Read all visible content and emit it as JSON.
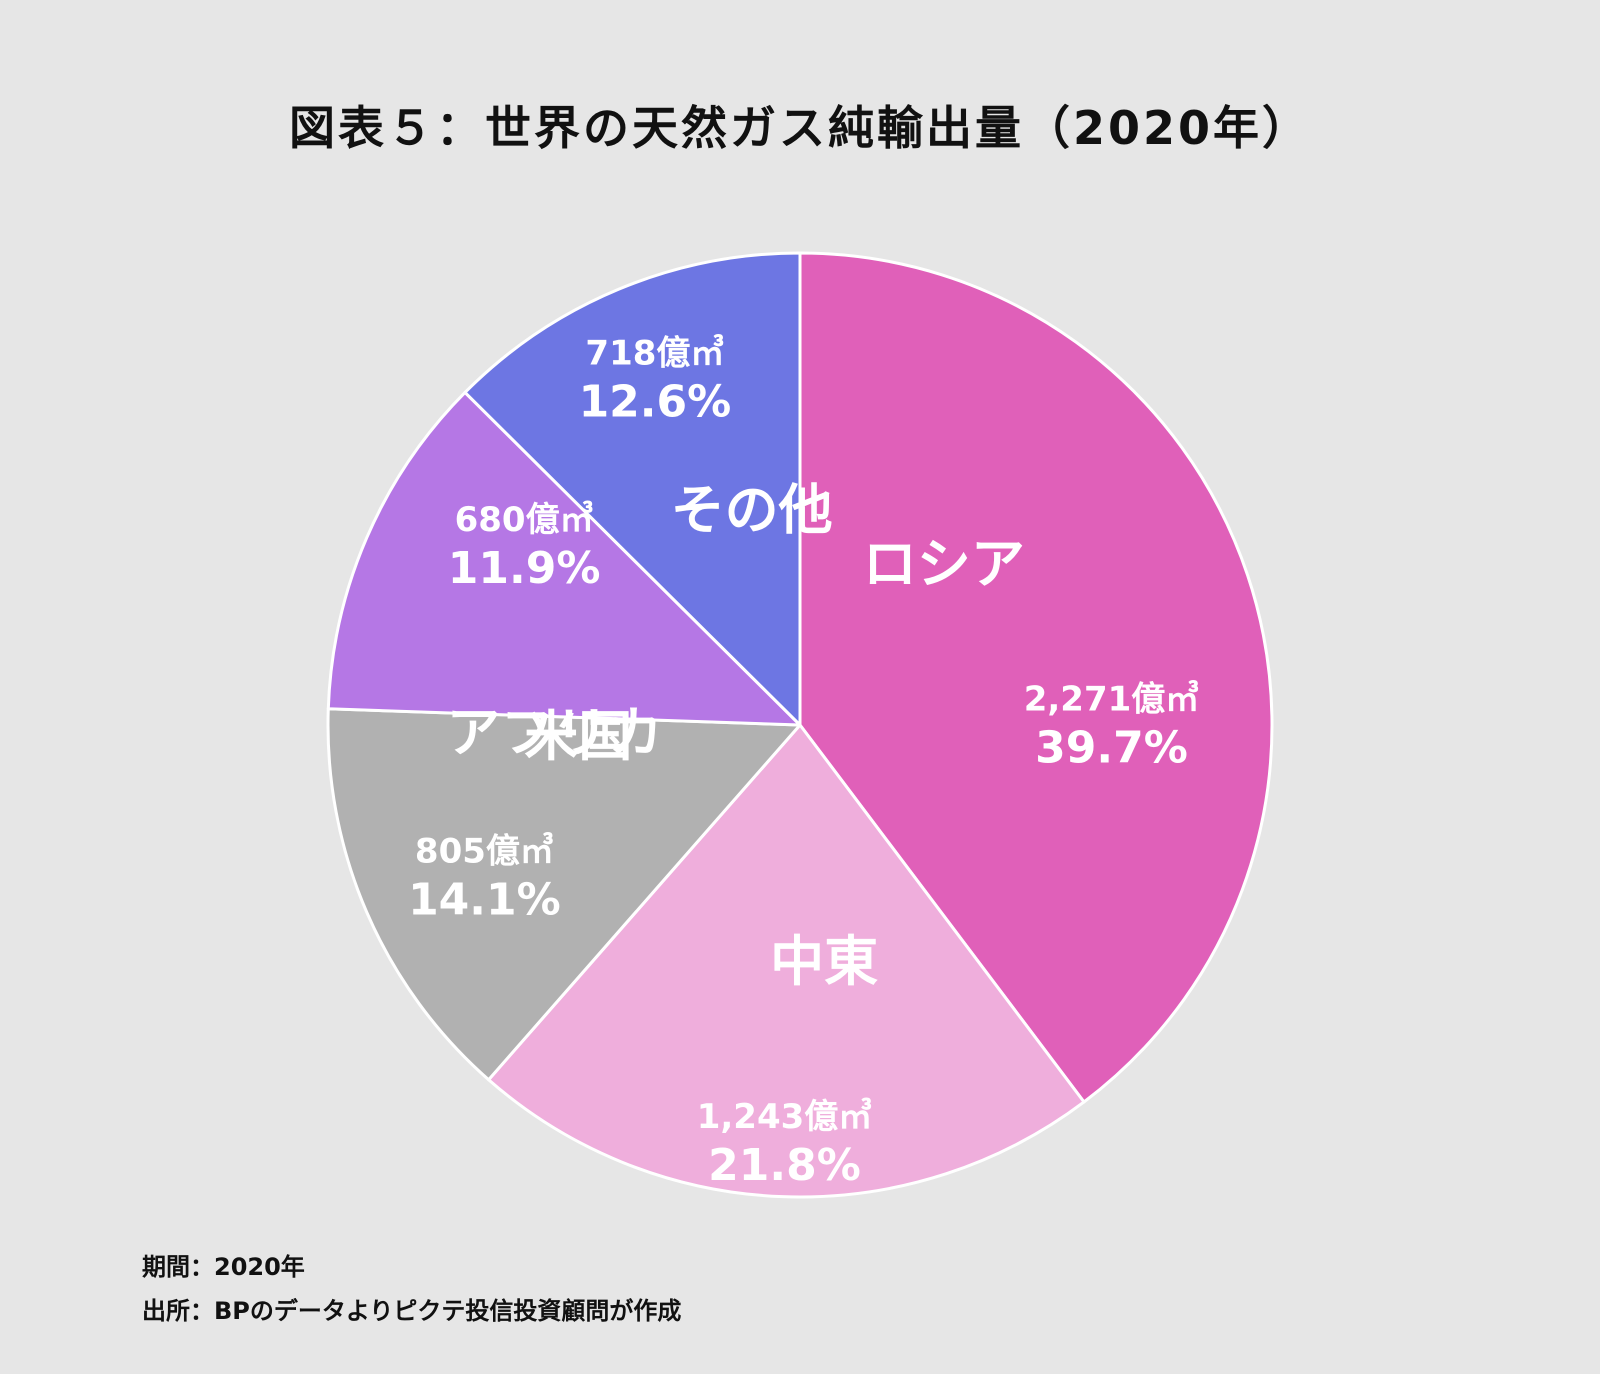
{
  "title": "図表５：世界の天然ガス純輸出量（2020年）",
  "chart_data": {
    "type": "pie",
    "title": "図表５：世界の天然ガス純輸出量（2020年）",
    "start_angle_deg": 0,
    "direction": "clockwise",
    "slices": [
      {
        "label": "ロシア",
        "value": 2271,
        "value_text": "2,271億㎥",
        "percent_text": "39.7%",
        "percent": 39.7,
        "color": "#e060b9"
      },
      {
        "label": "中東",
        "value": 1243,
        "value_text": "1,243億㎥",
        "percent_text": "21.8%",
        "percent": 21.8,
        "color": "#efaedc"
      },
      {
        "label": "アフリカ",
        "value": 805,
        "value_text": "805億㎥",
        "percent_text": "14.1%",
        "percent": 14.1,
        "color": "#b1b1b1"
      },
      {
        "label": "米国",
        "value": 680,
        "value_text": "680億㎥",
        "percent_text": "11.9%",
        "percent": 11.9,
        "color": "#b577e5"
      },
      {
        "label": "その他",
        "value": 718,
        "value_text": "718億㎥",
        "percent_text": "12.6%",
        "percent": 12.6,
        "color": "#6d76e3"
      }
    ]
  },
  "footer": {
    "period": "期間：2020年",
    "source": "出所：BPのデータよりピクテ投信投資顧問が作成"
  }
}
